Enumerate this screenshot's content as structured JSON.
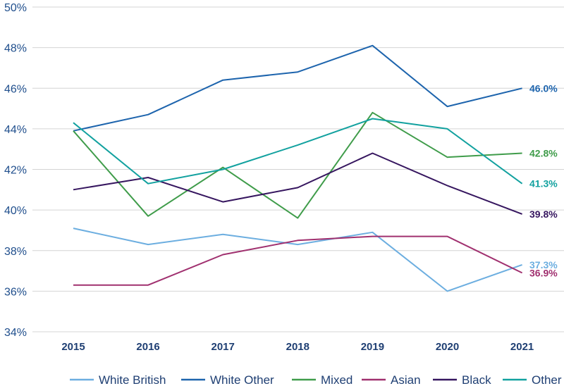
{
  "chart_data": {
    "type": "line",
    "title": "",
    "xlabel": "",
    "ylabel": "",
    "categories": [
      "2015",
      "2016",
      "2017",
      "2018",
      "2019",
      "2020",
      "2021"
    ],
    "ylim": [
      34,
      50
    ],
    "yticks": [
      34,
      36,
      38,
      40,
      42,
      44,
      46,
      48,
      50
    ],
    "ytick_labels": [
      "34%",
      "36%",
      "38%",
      "40%",
      "42%",
      "44%",
      "46%",
      "48%",
      "50%"
    ],
    "grid": "horizontal",
    "legend_position": "bottom",
    "series": [
      {
        "name": "White British",
        "color": "#6caee0",
        "values": [
          39.1,
          38.3,
          38.8,
          38.3,
          38.9,
          36.0,
          37.3
        ],
        "end_label": "37.3%"
      },
      {
        "name": "White Other",
        "color": "#1d64ad",
        "values": [
          43.9,
          44.7,
          46.4,
          46.8,
          48.1,
          45.1,
          46.0
        ],
        "end_label": "46.0%"
      },
      {
        "name": "Mixed",
        "color": "#3f9c4a",
        "values": [
          43.9,
          39.7,
          42.1,
          39.6,
          44.8,
          42.6,
          42.8
        ],
        "end_label": "42.8%"
      },
      {
        "name": "Asian",
        "color": "#a0306f",
        "values": [
          36.3,
          36.3,
          37.8,
          38.5,
          38.7,
          38.7,
          36.9
        ],
        "end_label": "36.9%"
      },
      {
        "name": "Black",
        "color": "#36165f",
        "values": [
          41.0,
          41.6,
          40.4,
          41.1,
          42.8,
          41.2,
          39.8
        ],
        "end_label": "39.8%"
      },
      {
        "name": "Other",
        "color": "#12a19f",
        "values": [
          44.3,
          41.3,
          42.0,
          43.2,
          44.5,
          44.0,
          41.3
        ],
        "end_label": "41.3%"
      }
    ]
  }
}
